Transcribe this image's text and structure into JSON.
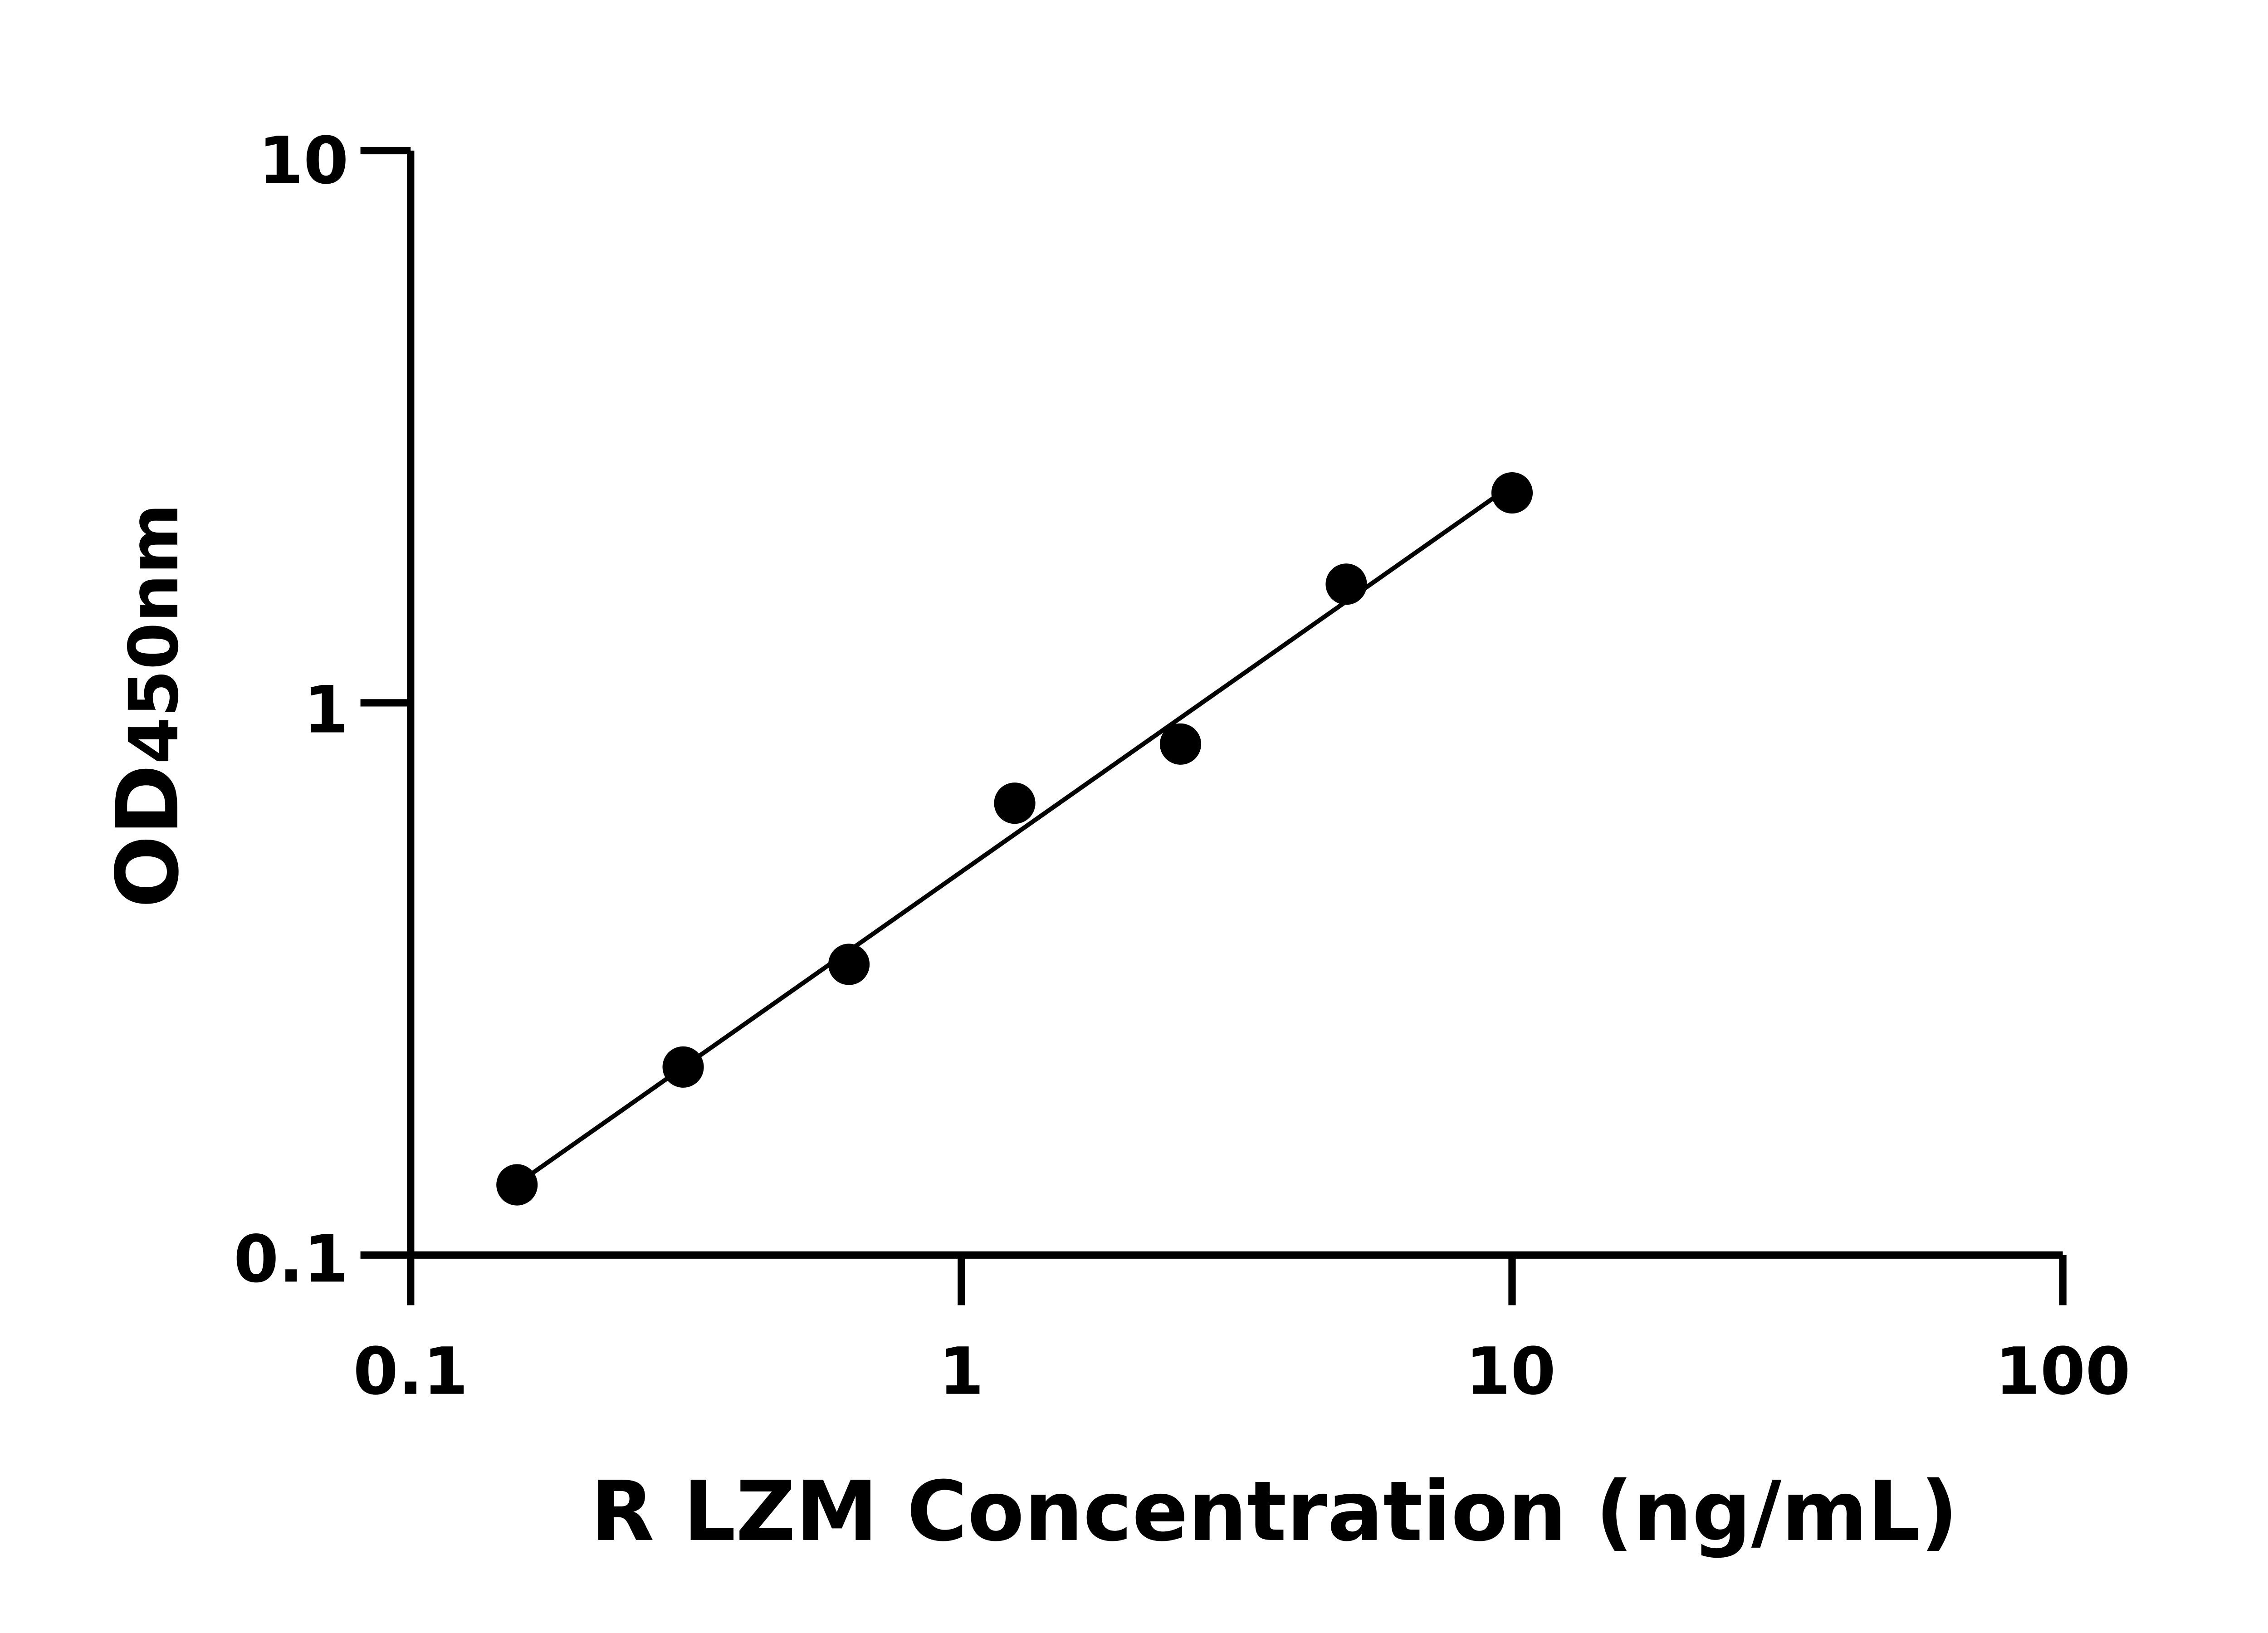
{
  "chart_data": {
    "type": "scatter",
    "xlabel": "R LZM Concentration (ng/mL)",
    "ylabel": {
      "main": "OD",
      "sub": "450nm"
    },
    "xscale": "log",
    "yscale": "log",
    "xlim": [
      0.1,
      100
    ],
    "ylim": [
      0.1,
      10
    ],
    "x_ticks": [
      "0.1",
      "1",
      "10",
      "100"
    ],
    "y_ticks": [
      "0.1",
      "1",
      "10"
    ],
    "grid": false,
    "points": [
      {
        "x": 0.156,
        "y": 0.134
      },
      {
        "x": 0.3125,
        "y": 0.219
      },
      {
        "x": 0.625,
        "y": 0.336
      },
      {
        "x": 1.25,
        "y": 0.658
      },
      {
        "x": 2.5,
        "y": 0.842
      },
      {
        "x": 5,
        "y": 1.64
      },
      {
        "x": 10,
        "y": 2.4
      }
    ],
    "fit_line": true,
    "color": "#000000"
  }
}
